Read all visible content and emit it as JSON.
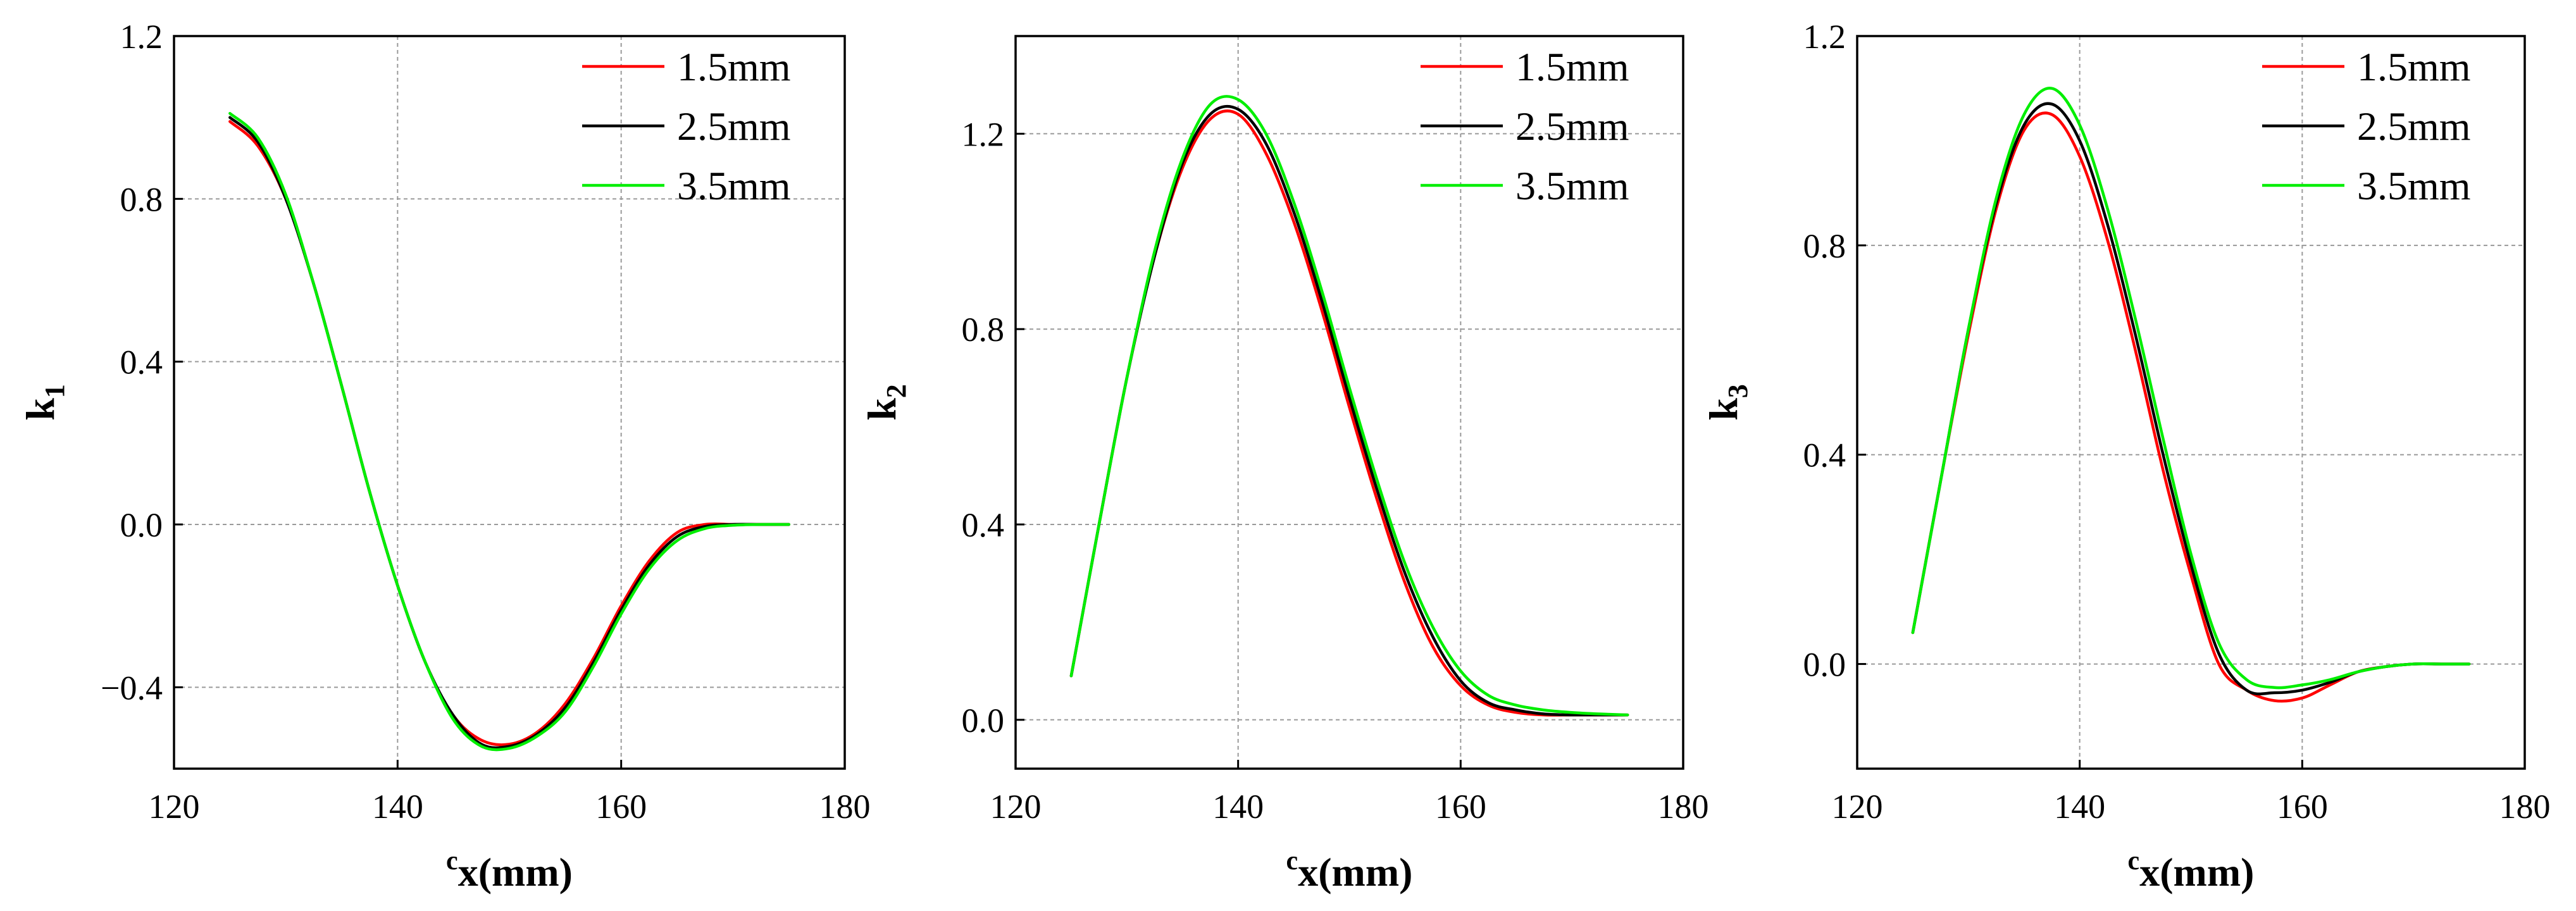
{
  "chart_data": [
    {
      "type": "line",
      "ylabel_main": "k",
      "ylabel_sub": "1",
      "xlabel_sup": "c",
      "xlabel_main": "x(mm)",
      "xlim": [
        120,
        180
      ],
      "ylim": [
        -0.6,
        1.2
      ],
      "xticks": [
        120,
        140,
        160,
        180
      ],
      "xtick_labels": [
        "120",
        "140",
        "160",
        "180"
      ],
      "yticks": [
        -0.4,
        0.0,
        0.4,
        0.8,
        1.2
      ],
      "ytick_labels": [
        "−0.4",
        "0.0",
        "0.4",
        "0.8",
        "1.2"
      ],
      "grid": true,
      "legend_position": "top-right",
      "x": [
        125,
        127.5,
        130,
        132.5,
        135,
        137.5,
        140,
        142.5,
        145,
        147.5,
        150,
        152.5,
        155,
        157.5,
        160,
        162.5,
        165,
        167.5,
        170,
        172.5,
        175
      ],
      "series": [
        {
          "name": "1.5mm",
          "color": "#ff0000",
          "values": [
            0.99,
            0.93,
            0.8,
            0.59,
            0.34,
            0.08,
            -0.15,
            -0.34,
            -0.47,
            -0.53,
            -0.54,
            -0.51,
            -0.44,
            -0.33,
            -0.2,
            -0.09,
            -0.02,
            0.0,
            0.0,
            0.0,
            0.0
          ]
        },
        {
          "name": "2.5mm",
          "color": "#000000",
          "values": [
            1.0,
            0.94,
            0.8,
            0.59,
            0.34,
            0.08,
            -0.15,
            -0.34,
            -0.47,
            -0.54,
            -0.545,
            -0.515,
            -0.45,
            -0.34,
            -0.21,
            -0.1,
            -0.03,
            -0.005,
            0.0,
            0.0,
            0.0
          ]
        },
        {
          "name": "3.5mm",
          "color": "#00ee00",
          "values": [
            1.01,
            0.95,
            0.81,
            0.59,
            0.34,
            0.08,
            -0.15,
            -0.34,
            -0.48,
            -0.545,
            -0.55,
            -0.52,
            -0.46,
            -0.35,
            -0.22,
            -0.11,
            -0.04,
            -0.01,
            -0.002,
            0.0,
            0.0
          ]
        }
      ]
    },
    {
      "type": "line",
      "ylabel_main": "k",
      "ylabel_sub": "2",
      "xlabel_sup": "c",
      "xlabel_main": "x(mm)",
      "xlim": [
        120,
        180
      ],
      "ylim": [
        -0.1,
        1.4
      ],
      "xticks": [
        120,
        140,
        160,
        180
      ],
      "xtick_labels": [
        "120",
        "140",
        "160",
        "180"
      ],
      "yticks": [
        0.0,
        0.4,
        0.8,
        1.2
      ],
      "ytick_labels": [
        "0.0",
        "0.4",
        "0.8",
        "1.2"
      ],
      "grid": true,
      "legend_position": "top-right",
      "x": [
        125,
        127.5,
        130,
        132.5,
        135,
        137.5,
        140,
        142.5,
        145,
        147.5,
        150,
        152.5,
        155,
        157.5,
        160,
        162.5,
        165,
        167.5,
        170,
        172.5,
        175
      ],
      "series": [
        {
          "name": "1.5mm",
          "color": "#ff0000",
          "values": [
            0.09,
            0.4,
            0.7,
            0.95,
            1.13,
            1.23,
            1.24,
            1.16,
            1.02,
            0.84,
            0.64,
            0.45,
            0.28,
            0.15,
            0.07,
            0.03,
            0.015,
            0.01,
            0.01,
            0.01,
            0.01
          ]
        },
        {
          "name": "2.5mm",
          "color": "#000000",
          "values": [
            0.09,
            0.4,
            0.7,
            0.95,
            1.14,
            1.24,
            1.25,
            1.18,
            1.04,
            0.86,
            0.66,
            0.47,
            0.3,
            0.17,
            0.08,
            0.035,
            0.02,
            0.012,
            0.01,
            0.01,
            0.01
          ]
        },
        {
          "name": "3.5mm",
          "color": "#00ee00",
          "values": [
            0.09,
            0.4,
            0.7,
            0.96,
            1.15,
            1.26,
            1.27,
            1.2,
            1.06,
            0.88,
            0.68,
            0.49,
            0.32,
            0.19,
            0.1,
            0.05,
            0.03,
            0.02,
            0.015,
            0.012,
            0.01
          ]
        }
      ]
    },
    {
      "type": "line",
      "ylabel_main": "k",
      "ylabel_sub": "3",
      "xlabel_sup": "c",
      "xlabel_main": "x(mm)",
      "xlim": [
        120,
        180
      ],
      "ylim": [
        -0.2,
        1.2
      ],
      "xticks": [
        120,
        140,
        160,
        180
      ],
      "xtick_labels": [
        "120",
        "140",
        "160",
        "180"
      ],
      "yticks": [
        0.0,
        0.4,
        0.8,
        1.2
      ],
      "ytick_labels": [
        "0.0",
        "0.4",
        "0.8",
        "1.2"
      ],
      "grid": true,
      "legend_position": "top-right",
      "x": [
        125,
        127.5,
        130,
        132.5,
        135,
        137.5,
        140,
        142.5,
        145,
        147.5,
        150,
        152.5,
        155,
        157.5,
        160,
        162.5,
        165,
        167.5,
        170,
        172.5,
        175
      ],
      "series": [
        {
          "name": "1.5mm",
          "color": "#ff0000",
          "values": [
            0.06,
            0.35,
            0.63,
            0.87,
            1.02,
            1.05,
            0.97,
            0.81,
            0.6,
            0.37,
            0.17,
            0.0,
            -0.05,
            -0.07,
            -0.065,
            -0.04,
            -0.015,
            -0.005,
            0.0,
            0.0,
            0.0
          ]
        },
        {
          "name": "2.5mm",
          "color": "#000000",
          "values": [
            0.06,
            0.35,
            0.64,
            0.88,
            1.03,
            1.07,
            1.0,
            0.84,
            0.63,
            0.4,
            0.19,
            0.02,
            -0.05,
            -0.055,
            -0.05,
            -0.035,
            -0.015,
            -0.005,
            0.0,
            0.0,
            0.0
          ]
        },
        {
          "name": "3.5mm",
          "color": "#00ee00",
          "values": [
            0.06,
            0.35,
            0.64,
            0.89,
            1.05,
            1.1,
            1.03,
            0.87,
            0.66,
            0.43,
            0.21,
            0.04,
            -0.03,
            -0.045,
            -0.04,
            -0.03,
            -0.015,
            -0.005,
            0.0,
            0.0,
            0.0
          ]
        }
      ]
    }
  ]
}
